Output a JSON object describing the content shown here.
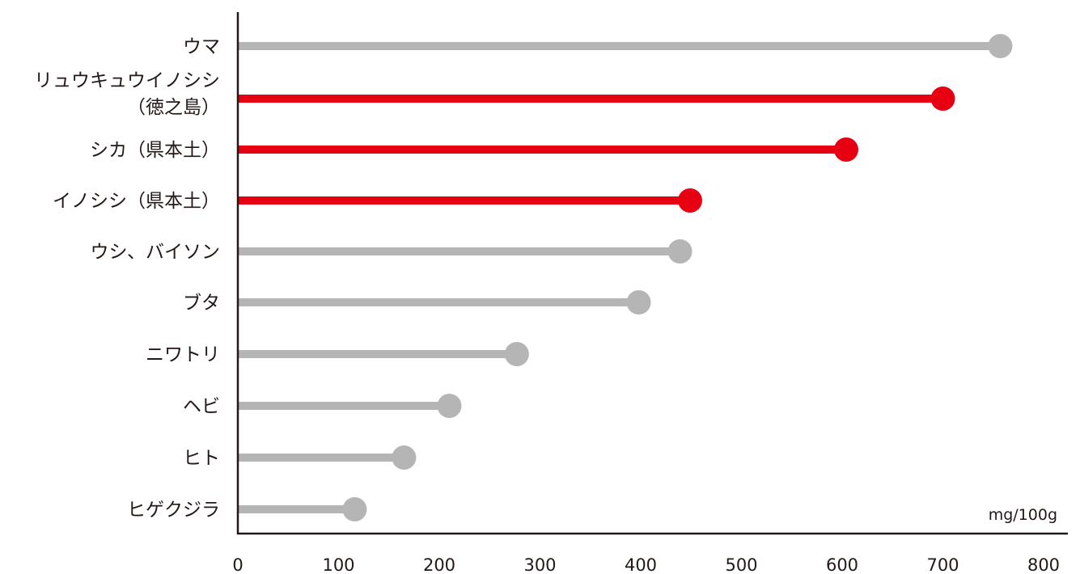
{
  "chart_data": {
    "type": "lollipop",
    "orientation": "horizontal",
    "unit_label": "mg/100g",
    "xlim": [
      0,
      800
    ],
    "x_ticks": [
      "0",
      "100",
      "200",
      "300",
      "400",
      "500",
      "600",
      "700",
      "800"
    ],
    "grid": false,
    "colors": {
      "default": "#b5b5b5",
      "highlight": "#e60012",
      "axis": "#231815"
    },
    "items": [
      {
        "label": [
          "ウマ"
        ],
        "value": 757,
        "highlight": false
      },
      {
        "label": [
          "リュウキュウイノシシ",
          "（徳之島）"
        ],
        "value": 700,
        "highlight": true
      },
      {
        "label": [
          "シカ（県本土）"
        ],
        "value": 604,
        "highlight": true
      },
      {
        "label": [
          "イノシシ（県本土）"
        ],
        "value": 449,
        "highlight": true
      },
      {
        "label": [
          "ウシ、バイソン"
        ],
        "value": 439,
        "highlight": false
      },
      {
        "label": [
          "ブタ"
        ],
        "value": 398,
        "highlight": false
      },
      {
        "label": [
          "ニワトリ"
        ],
        "value": 277,
        "highlight": false
      },
      {
        "label": [
          "ヘビ"
        ],
        "value": 210,
        "highlight": false
      },
      {
        "label": [
          "ヒト"
        ],
        "value": 165,
        "highlight": false
      },
      {
        "label": [
          "ヒゲクジラ"
        ],
        "value": 116,
        "highlight": false
      }
    ]
  }
}
